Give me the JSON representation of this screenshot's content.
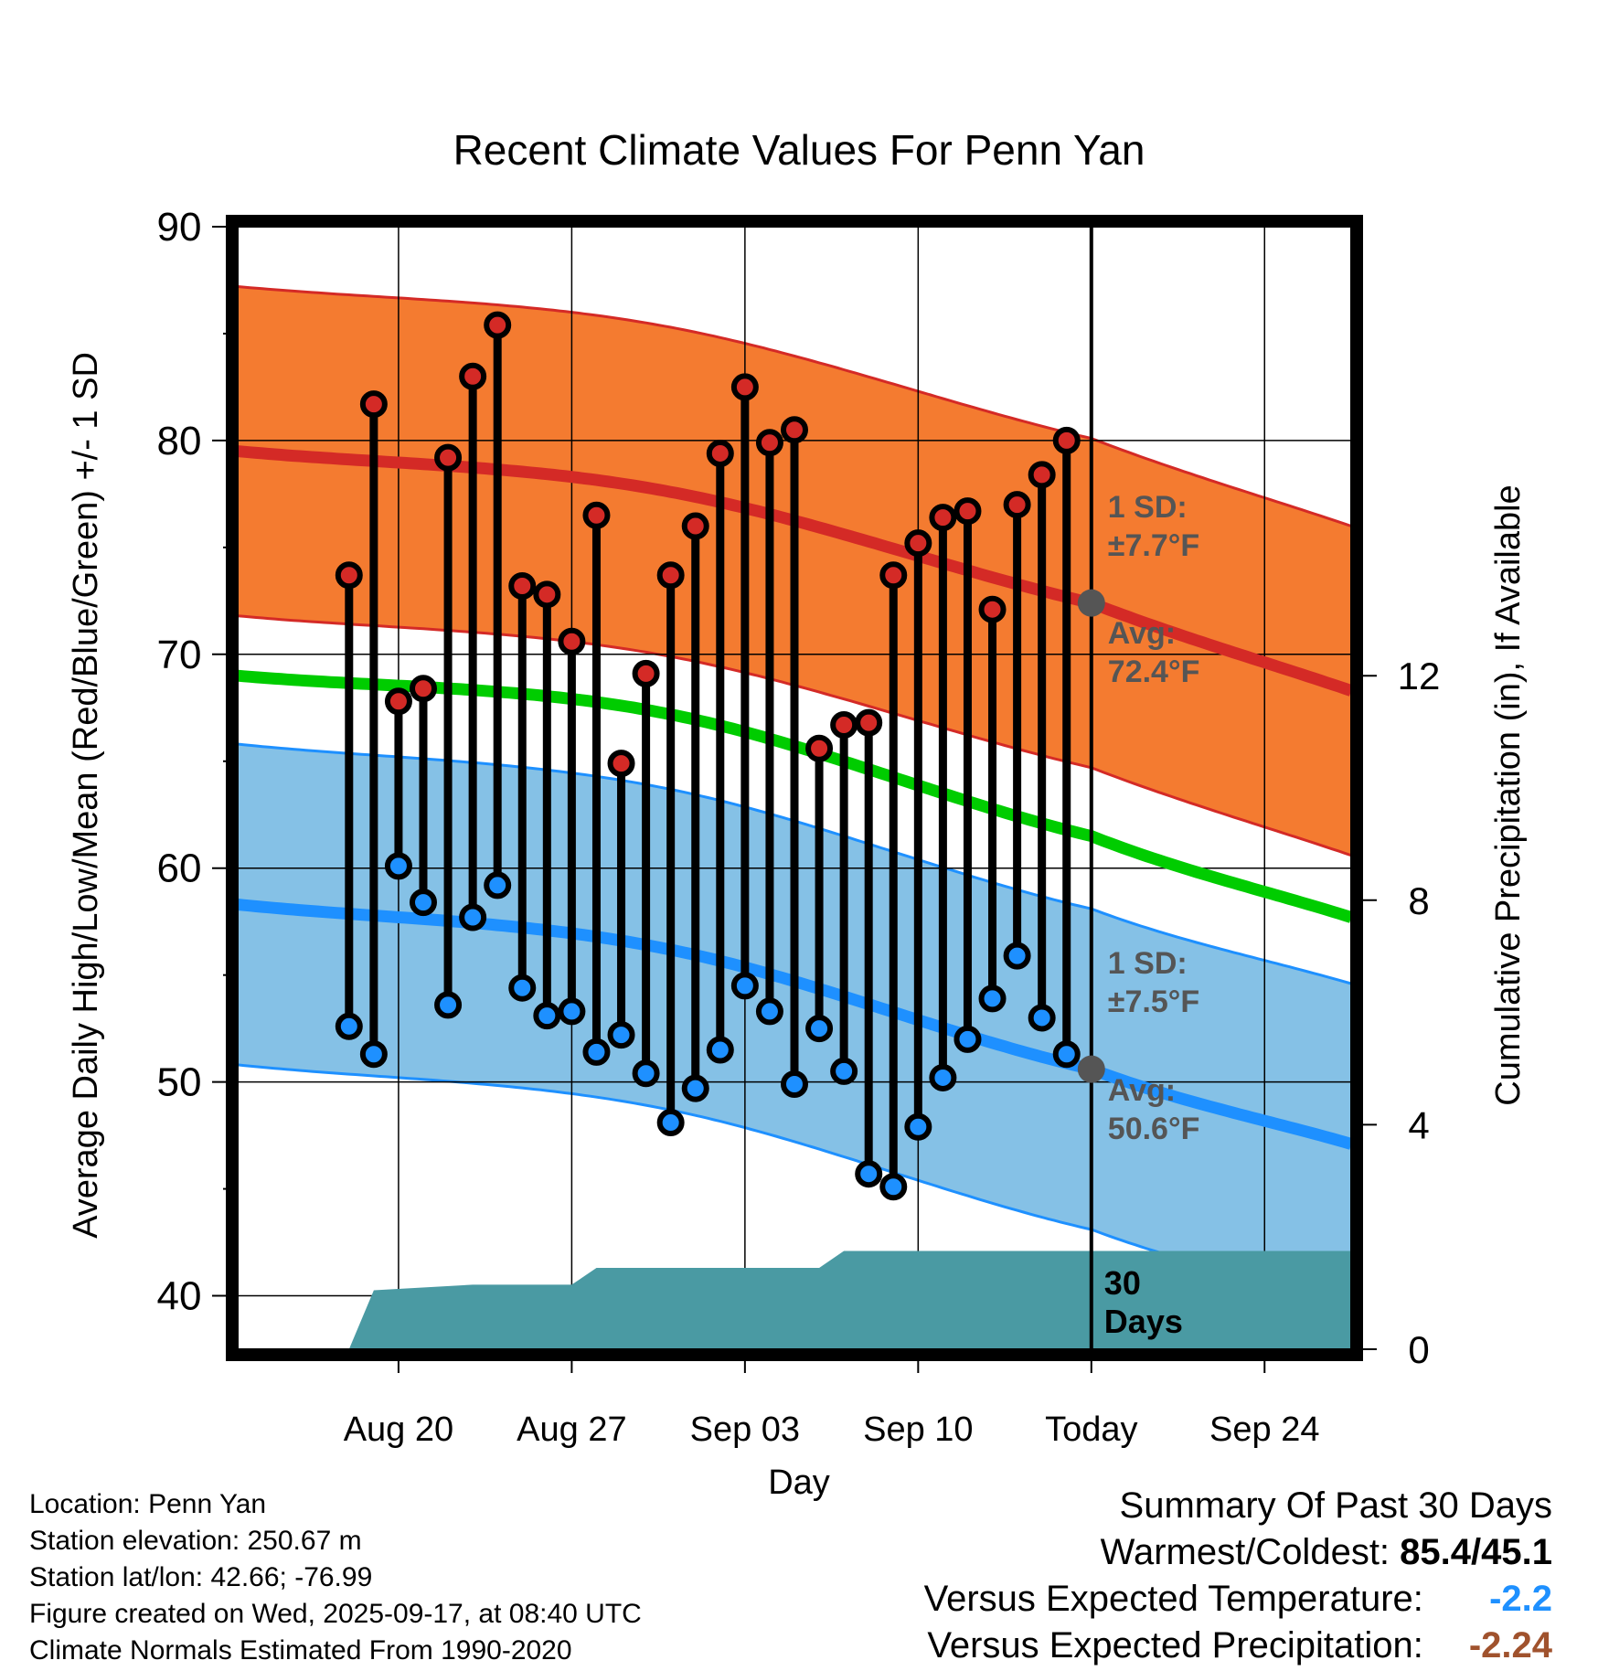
{
  "chart_data": {
    "type": "line",
    "title": "Recent Climate Values For Penn Yan",
    "xlabel": "Day",
    "ylabel": "Average Daily High/Low/Mean (Red/Blue/Green) +/- 1 SD",
    "y2label": "Cumulative Precipitation (in), If Available",
    "ylim": [
      37.5,
      90
    ],
    "y2lim": [
      0,
      20
    ],
    "yticks": [
      "40",
      "50",
      "60",
      "70",
      "80",
      "90"
    ],
    "y2ticks": [
      "0",
      "4",
      "8",
      "12"
    ],
    "x_range_days": [
      -34.5,
      10.5
    ],
    "xticks": [
      {
        "label": "Aug 20",
        "day": -28
      },
      {
        "label": "Aug 27",
        "day": -21
      },
      {
        "label": "Sep 03",
        "day": -14
      },
      {
        "label": "Sep 10",
        "day": -7
      },
      {
        "label": "Today",
        "day": 0
      },
      {
        "label": "Sep 24",
        "day": 7
      }
    ],
    "grid": true,
    "daily_high": [
      73.7,
      81.7,
      67.8,
      68.4,
      79.2,
      83.0,
      85.4,
      73.2,
      72.8,
      70.6,
      76.5,
      64.9,
      69.1,
      73.7,
      76.0,
      79.4,
      82.5,
      79.9,
      80.5,
      65.6,
      66.7,
      66.8,
      73.7,
      75.2,
      76.4,
      76.7,
      72.1,
      77.0,
      78.4,
      80.0
    ],
    "daily_low": [
      52.6,
      51.3,
      60.1,
      58.4,
      53.6,
      57.7,
      59.2,
      54.4,
      53.1,
      53.3,
      51.4,
      52.2,
      50.4,
      48.1,
      49.7,
      51.5,
      54.5,
      53.3,
      49.9,
      52.5,
      50.5,
      45.7,
      45.1,
      47.9,
      50.2,
      52.0,
      53.9,
      55.9,
      53.0,
      51.3
    ],
    "normal_high": {
      "name": "Normal High",
      "day": [
        -34.5,
        -17.5,
        0,
        10.5
      ],
      "values": [
        79.5,
        77.7,
        72.4,
        68.3
      ]
    },
    "normal_mean": {
      "name": "Normal Mean",
      "day": [
        -34.5,
        -17.5,
        0,
        10.5
      ],
      "values": [
        69.0,
        67.3,
        61.5,
        57.7
      ]
    },
    "normal_low": {
      "name": "Normal Low",
      "day": [
        -34.5,
        -17.5,
        0,
        10.5
      ],
      "values": [
        58.3,
        56.3,
        50.6,
        47.1
      ]
    },
    "high_sd": 7.7,
    "low_sd": 7.5,
    "precipitation": {
      "day": [
        -34.5,
        -30,
        -29,
        -25,
        -21,
        -20,
        -11,
        -10,
        10.5
      ],
      "values": [
        0,
        0,
        1.05,
        1.15,
        1.15,
        1.45,
        1.45,
        1.75,
        1.75
      ]
    },
    "annotations": {
      "high_sd_label": "1 SD:",
      "high_sd_value": "±7.7°F",
      "high_avg_label": "Avg:",
      "high_avg_value": "72.4°F",
      "low_sd_label": "1 SD:",
      "low_sd_value": "±7.5°F",
      "low_avg_label": "Avg:",
      "low_avg_value": "50.6°F",
      "period_label_1": "30",
      "period_label_2": "Days"
    },
    "colors": {
      "high_band": "#F47B30",
      "high_line": "#D42A26",
      "mean_line": "#00CC00",
      "low_band": "#85C1E6",
      "low_line": "#1E90FF",
      "precip": "#4A9AA3",
      "marker_high": "#D42A26",
      "marker_low": "#1E90FF",
      "today_marker": "#555555"
    }
  },
  "footer": {
    "location": "Location: Penn Yan",
    "elevation": "Station elevation: 250.67 m",
    "latlon": "Station lat/lon: 42.66; -76.99",
    "created": "Figure created on Wed, 2025-09-17, at 08:40 UTC",
    "normals": "Climate Normals Estimated From 1990-2020"
  },
  "summary": {
    "title": "Summary Of Past 30 Days",
    "warmest_label": "Warmest/Coldest:",
    "warmest_value": "85.4/45.1",
    "temp_label": "Versus Expected Temperature:",
    "temp_value": "-2.2",
    "temp_color": "#1E90FF",
    "precip_label": "Versus Expected Precipitation:",
    "precip_value": "-2.24",
    "precip_color": "#A0522D"
  }
}
